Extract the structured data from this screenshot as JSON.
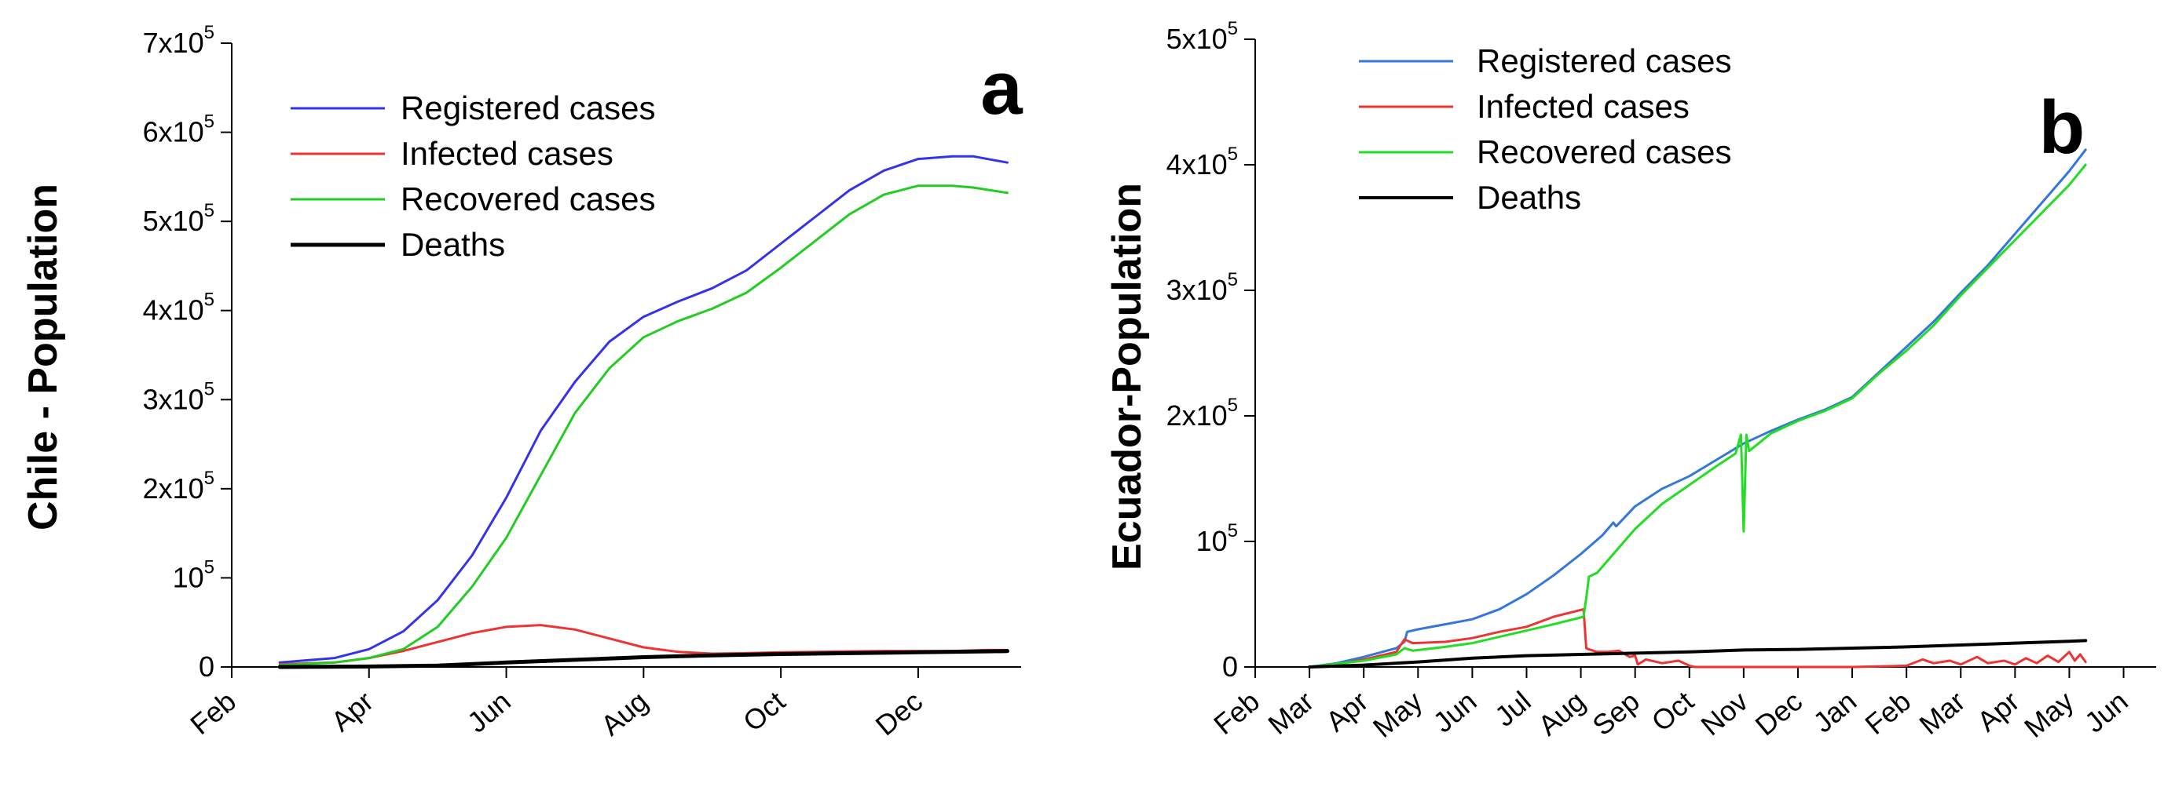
{
  "chart_data": [
    {
      "type": "line",
      "panel_label": "a",
      "ylabel": "Chile - Population",
      "xlabel": "",
      "x_ticks": [
        "Feb",
        "Apr",
        "Jun",
        "Aug",
        "Oct",
        "Dec"
      ],
      "x_tick_pos": [
        0,
        2,
        4,
        6,
        8,
        10
      ],
      "x_range": [
        0,
        11.5
      ],
      "ylim": [
        0,
        700000
      ],
      "y_ticks": [
        {
          "v": 0,
          "base": "0",
          "exp": ""
        },
        {
          "v": 100000,
          "base": "10",
          "exp": "5"
        },
        {
          "v": 200000,
          "base": "2x10",
          "exp": "5"
        },
        {
          "v": 300000,
          "base": "3x10",
          "exp": "5"
        },
        {
          "v": 400000,
          "base": "4x10",
          "exp": "5"
        },
        {
          "v": 500000,
          "base": "5x10",
          "exp": "5"
        },
        {
          "v": 600000,
          "base": "6x10",
          "exp": "5"
        },
        {
          "v": 700000,
          "base": "7x10",
          "exp": "5"
        }
      ],
      "legend": [
        {
          "label": "Registered cases",
          "color": "#3333ee",
          "width": 3
        },
        {
          "label": "Infected cases",
          "color": "#ee3333",
          "width": 3
        },
        {
          "label": "Recovered cases",
          "color": "#22cc22",
          "width": 3
        },
        {
          "label": "Deaths",
          "color": "#000000",
          "width": 5
        }
      ],
      "series": [
        {
          "name": "Registered cases",
          "color": "#3333ee",
          "width": 3,
          "x": [
            0.7,
            1.5,
            2,
            2.5,
            3,
            3.5,
            4,
            4.5,
            5,
            5.5,
            6,
            6.5,
            7,
            7.5,
            8,
            8.5,
            9,
            9.5,
            10,
            10.5,
            10.8,
            11.3
          ],
          "y": [
            5000,
            10000,
            20000,
            40000,
            75000,
            125000,
            190000,
            265000,
            320000,
            365000,
            393000,
            410000,
            425000,
            445000,
            475000,
            505000,
            535000,
            557000,
            570000,
            573000,
            573000,
            566000
          ]
        },
        {
          "name": "Infected cases",
          "color": "#ee3333",
          "width": 3,
          "x": [
            0.7,
            1.5,
            2,
            2.5,
            3,
            3.5,
            4,
            4.5,
            5,
            5.5,
            6,
            6.5,
            7,
            7.5,
            8,
            8.5,
            9,
            9.5,
            10,
            10.5,
            11,
            11.3
          ],
          "y": [
            3000,
            5000,
            10000,
            18000,
            28000,
            38000,
            45000,
            47000,
            42000,
            32000,
            22000,
            17000,
            15000,
            15500,
            16500,
            17000,
            17500,
            18000,
            18000,
            18000,
            19000,
            19000
          ]
        },
        {
          "name": "Recovered cases",
          "color": "#22cc22",
          "width": 3,
          "x": [
            0.7,
            1.5,
            2,
            2.5,
            3,
            3.5,
            4,
            4.5,
            5,
            5.5,
            6,
            6.5,
            7,
            7.5,
            8,
            8.5,
            9,
            9.5,
            10,
            10.5,
            10.8,
            11.3
          ],
          "y": [
            2000,
            5000,
            10000,
            20000,
            45000,
            90000,
            145000,
            215000,
            285000,
            335000,
            370000,
            388000,
            402000,
            420000,
            448000,
            478000,
            508000,
            530000,
            540000,
            540000,
            538000,
            532000
          ]
        },
        {
          "name": "Deaths",
          "color": "#000000",
          "width": 5,
          "x": [
            0.7,
            2,
            3,
            4,
            5,
            6,
            7,
            8,
            9,
            10,
            11,
            11.3
          ],
          "y": [
            0,
            500,
            1500,
            5000,
            8000,
            11000,
            13000,
            14500,
            15500,
            16500,
            17500,
            17800
          ]
        }
      ]
    },
    {
      "type": "line",
      "panel_label": "b",
      "ylabel": "Ecuador-Population",
      "xlabel": "",
      "x_ticks": [
        "Feb",
        "Mar",
        "Apr",
        "May",
        "Jun",
        "Jul",
        "Aug",
        "Sep",
        "Oct",
        "Nov",
        "Dec",
        "Jan",
        "Feb",
        "Mar",
        "Apr",
        "May",
        "Jun"
      ],
      "x_tick_pos": [
        0,
        1,
        2,
        3,
        4,
        5,
        6,
        7,
        8,
        9,
        10,
        11,
        12,
        13,
        14,
        15,
        16
      ],
      "x_range": [
        0,
        16.6
      ],
      "ylim": [
        0,
        500000
      ],
      "y_ticks": [
        {
          "v": 0,
          "base": "0",
          "exp": ""
        },
        {
          "v": 100000,
          "base": "10",
          "exp": "5"
        },
        {
          "v": 200000,
          "base": "2x10",
          "exp": "5"
        },
        {
          "v": 300000,
          "base": "3x10",
          "exp": "5"
        },
        {
          "v": 400000,
          "base": "4x10",
          "exp": "5"
        },
        {
          "v": 500000,
          "base": "5x10",
          "exp": "5"
        }
      ],
      "legend": [
        {
          "label": "Registered cases",
          "color": "#3377dd",
          "width": 3
        },
        {
          "label": "Infected cases",
          "color": "#ee3333",
          "width": 3
        },
        {
          "label": "Recovered cases",
          "color": "#22dd22",
          "width": 3
        },
        {
          "label": "Deaths",
          "color": "#000000",
          "width": 4
        }
      ],
      "series": [
        {
          "name": "Registered cases",
          "color": "#3377dd",
          "width": 3,
          "x": [
            1,
            1.5,
            2,
            2.6,
            2.75,
            2.8,
            3,
            3.5,
            4,
            4.5,
            5,
            5.5,
            6,
            6.4,
            6.6,
            6.65,
            7,
            7.5,
            8,
            8.5,
            9,
            9.5,
            10,
            10.5,
            11,
            11.5,
            12,
            12.5,
            13,
            13.5,
            14,
            14.5,
            15,
            15.3
          ],
          "y": [
            0,
            3000,
            8000,
            15000,
            20000,
            28000,
            30000,
            34000,
            38000,
            46000,
            58000,
            73000,
            90000,
            105000,
            115000,
            112000,
            128000,
            142000,
            152000,
            165000,
            178000,
            188000,
            197000,
            205000,
            215000,
            235000,
            255000,
            275000,
            298000,
            320000,
            345000,
            370000,
            395000,
            412000
          ]
        },
        {
          "name": "Infected cases",
          "color": "#ee3333",
          "width": 3,
          "x": [
            1,
            1.5,
            2,
            2.6,
            2.75,
            2.9,
            3.5,
            4,
            4.5,
            5,
            5.5,
            6.05,
            6.1,
            6.15,
            6.3,
            6.5,
            6.7,
            6.9,
            7.0,
            7.05,
            7.2,
            7.5,
            7.8,
            8.0,
            8.1,
            8.5,
            9,
            10,
            11,
            12,
            12.3,
            12.5,
            12.8,
            13,
            13.3,
            13.5,
            13.8,
            14,
            14.2,
            14.4,
            14.6,
            14.8,
            15,
            15.1,
            15.2,
            15.3
          ],
          "y": [
            0,
            2000,
            6000,
            12000,
            22000,
            19000,
            20000,
            23000,
            28000,
            32000,
            40000,
            46000,
            15000,
            14000,
            12000,
            12000,
            13000,
            8000,
            9000,
            2000,
            6000,
            3000,
            5000,
            1000,
            0,
            0,
            0,
            0,
            0,
            1000,
            6000,
            3000,
            5000,
            2000,
            8000,
            3000,
            5000,
            2000,
            7000,
            3000,
            9000,
            4000,
            12000,
            5000,
            10000,
            4000
          ]
        },
        {
          "name": "Recovered cases",
          "color": "#22dd22",
          "width": 3,
          "x": [
            1,
            2,
            2.6,
            2.75,
            2.9,
            3.5,
            4,
            4.5,
            5,
            5.5,
            6.05,
            6.1,
            6.15,
            6.3,
            6.5,
            7,
            7.5,
            8,
            8.5,
            8.85,
            8.95,
            9.0,
            9.05,
            9.1,
            9.5,
            10,
            10.5,
            11,
            11.5,
            12,
            12.5,
            13,
            13.5,
            14,
            14.5,
            15,
            15.3
          ],
          "y": [
            0,
            5000,
            10000,
            15000,
            13000,
            16000,
            19000,
            24000,
            29000,
            34000,
            40000,
            55000,
            72000,
            75000,
            85000,
            110000,
            130000,
            145000,
            160000,
            170000,
            185000,
            108000,
            185000,
            172000,
            186000,
            196000,
            204000,
            214000,
            234000,
            252000,
            272000,
            296000,
            318000,
            340000,
            362000,
            384000,
            400000
          ]
        },
        {
          "name": "Deaths",
          "color": "#000000",
          "width": 4,
          "x": [
            1,
            2,
            3,
            4,
            5,
            6,
            7,
            8,
            9,
            10,
            11,
            12,
            13,
            14,
            15,
            15.3
          ],
          "y": [
            0,
            1500,
            4000,
            7000,
            9000,
            10000,
            11000,
            12000,
            13500,
            14000,
            15000,
            16000,
            17500,
            19000,
            20500,
            21000
          ]
        }
      ]
    }
  ]
}
